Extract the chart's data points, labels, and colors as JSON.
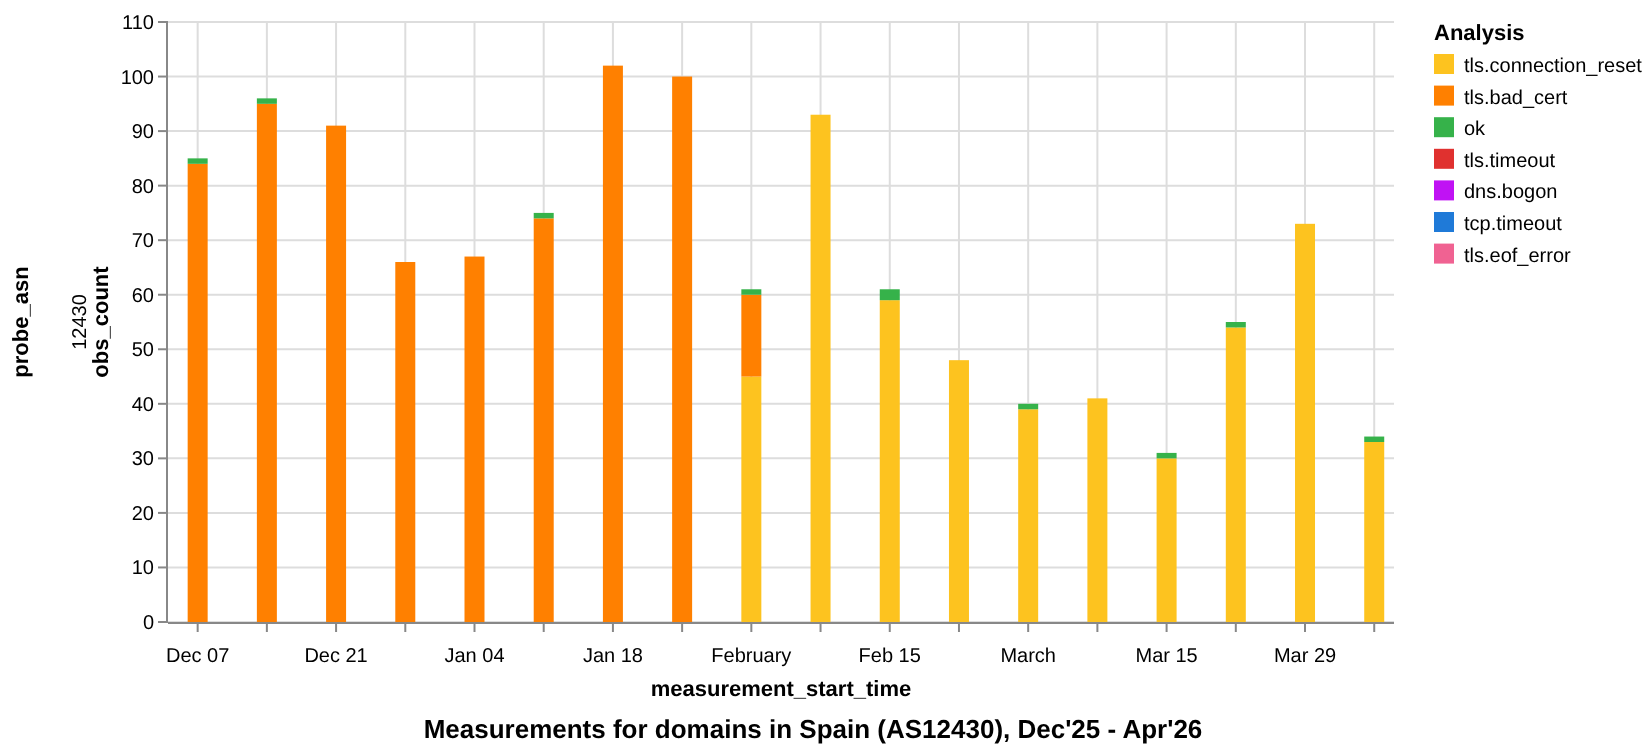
{
  "chart_data": {
    "type": "bar",
    "title": "Measurements for domains in Spain (AS12430), Dec'25 - Apr'26",
    "xlabel": "measurement_start_time",
    "ylabel": "obs_count",
    "legend_title": "Analysis",
    "annotations": [
      "probe_asn",
      "12430"
    ],
    "x": [
      "2025-12-07",
      "2025-12-14",
      "2025-12-21",
      "2025-12-28",
      "2026-01-04",
      "2026-01-11",
      "2026-01-18",
      "2026-01-25",
      "2026-02-01",
      "2026-02-08",
      "2026-02-15",
      "2026-02-22",
      "2026-03-01",
      "2026-03-08",
      "2026-03-15",
      "2026-03-22",
      "2026-03-29",
      "2026-04-05"
    ],
    "stacked": true,
    "series": [
      {
        "name": "tls.connection_reset",
        "color": "#fdc31f",
        "values": [
          0,
          0,
          0,
          0,
          0,
          0,
          0,
          0,
          45,
          93,
          59,
          48,
          39,
          41,
          30,
          54,
          73,
          33
        ]
      },
      {
        "name": "tls.bad_cert",
        "color": "#ff8000",
        "values": [
          84,
          95,
          91,
          66,
          67,
          74,
          102,
          100,
          15,
          0,
          0,
          0,
          0,
          0,
          0,
          0,
          0,
          0
        ]
      },
      {
        "name": "ok",
        "color": "#36b24a",
        "values": [
          1,
          1,
          0,
          0,
          0,
          1,
          0,
          0,
          1,
          0,
          2,
          0,
          1,
          0,
          1,
          1,
          0,
          1
        ]
      },
      {
        "name": "tls.timeout",
        "color": "#e0312f",
        "values": [
          0,
          0,
          0,
          0,
          0,
          0,
          0,
          0,
          0,
          0,
          0,
          0,
          0,
          0,
          0,
          0,
          0,
          0
        ]
      },
      {
        "name": "dns.bogon",
        "color": "#c012f4",
        "values": [
          0,
          0,
          0,
          0,
          0,
          0,
          0,
          0,
          0,
          0,
          0,
          0,
          0,
          0,
          0,
          0,
          0,
          0
        ]
      },
      {
        "name": "tcp.timeout",
        "color": "#1f7ad8",
        "values": [
          0,
          0,
          0,
          0,
          0,
          0,
          0,
          0,
          0,
          0,
          0,
          0,
          0,
          0,
          0,
          0,
          0,
          0
        ]
      },
      {
        "name": "tls.eof_error",
        "color": "#f06292",
        "values": [
          0,
          0,
          0,
          0,
          0,
          0,
          0,
          0,
          0,
          0,
          0,
          0,
          0,
          0,
          0,
          0,
          0,
          0
        ]
      }
    ],
    "xlim": [
      "2025-12-04",
      "2026-04-07"
    ],
    "xticks": [
      {
        "value": "2025-12-07",
        "label": "Dec 07"
      },
      {
        "value": "2025-12-14",
        "label": null
      },
      {
        "value": "2025-12-21",
        "label": "Dec 21"
      },
      {
        "value": "2025-12-28",
        "label": null
      },
      {
        "value": "2026-01-04",
        "label": "Jan 04"
      },
      {
        "value": "2026-01-11",
        "label": null
      },
      {
        "value": "2026-01-18",
        "label": "Jan 18"
      },
      {
        "value": "2026-01-25",
        "label": null
      },
      {
        "value": "2026-02-01",
        "label": "February"
      },
      {
        "value": "2026-02-08",
        "label": null
      },
      {
        "value": "2026-02-15",
        "label": "Feb 15"
      },
      {
        "value": "2026-02-22",
        "label": null
      },
      {
        "value": "2026-03-01",
        "label": "March"
      },
      {
        "value": "2026-03-08",
        "label": null
      },
      {
        "value": "2026-03-15",
        "label": "Mar 15"
      },
      {
        "value": "2026-03-22",
        "label": null
      },
      {
        "value": "2026-03-29",
        "label": "Mar 29"
      },
      {
        "value": "2026-04-05",
        "label": null
      }
    ],
    "ylim": [
      0,
      110
    ],
    "yticks": [
      0,
      10,
      20,
      30,
      40,
      50,
      60,
      70,
      80,
      90,
      100,
      110
    ],
    "grid": true,
    "legend": "top right"
  }
}
